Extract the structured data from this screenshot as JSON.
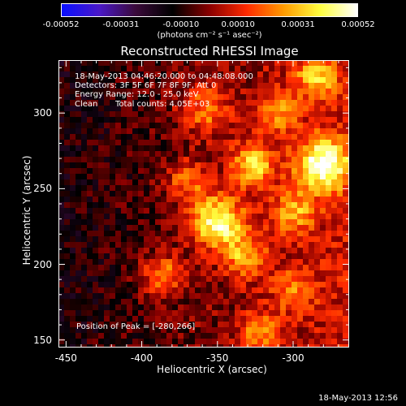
{
  "chart_data": {
    "type": "heatmap",
    "title": "Reconstructed RHESSI Image",
    "xlabel": "Heliocentric X (arcsec)",
    "ylabel": "Heliocentric Y (arcsec)",
    "xlim": [
      -455,
      -263
    ],
    "ylim": [
      145,
      335
    ],
    "x_ticks": [
      "-450",
      "-400",
      "-350",
      "-300"
    ],
    "x_tick_values": [
      -450,
      -400,
      -350,
      -300
    ],
    "y_ticks": [
      "150",
      "200",
      "250",
      "300"
    ],
    "y_tick_values": [
      150,
      200,
      250,
      300
    ],
    "colorbar": {
      "range": [
        -0.00052,
        0.00052
      ],
      "tick_labels": [
        "-0.00052",
        "-0.00031",
        "-0.00010",
        "0.00010",
        "0.00031",
        "0.00052"
      ],
      "tick_values": [
        -0.00052,
        -0.00031,
        -0.0001,
        0.0001,
        0.00031,
        0.00052
      ],
      "units": "(photons cm⁻² s⁻¹ asec⁻²)",
      "colors": [
        "#0a10ff",
        "#4a18c8",
        "#3a0a3a",
        "#000000",
        "#8a0000",
        "#ff2a00",
        "#ff9a00",
        "#ffff40",
        "#ffffff"
      ]
    },
    "annotations": {
      "time": "18-May-2013 04:46:20.000 to 04:48:08.000",
      "detectors": "Detectors: 3F 5F 6F 7F 8F 9F, Att 0",
      "energy": "Energy Range: 12.0 - 25.0 keV",
      "method": "Clean",
      "counts": "Total counts: 4.05E+03",
      "peak": "Position of Peak = [-280,266]"
    },
    "peak": {
      "x": -280,
      "y": 266
    },
    "grid": false
  },
  "footer": {
    "timestamp": "18-May-2013 12:56"
  }
}
